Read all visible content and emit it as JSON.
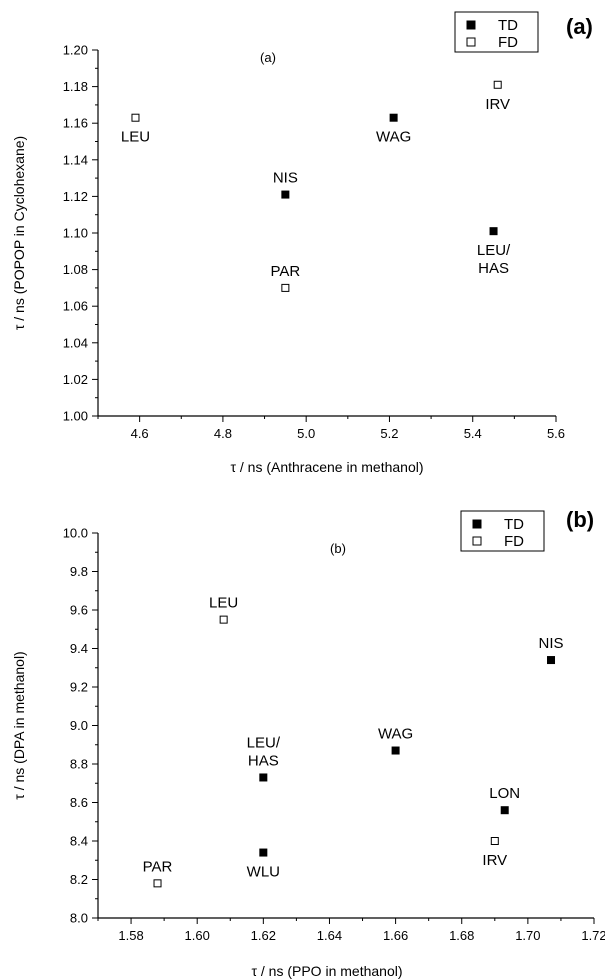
{
  "chart_data": [
    {
      "type": "scatter",
      "panel_letter": "(a)",
      "panel_tag": "(a)",
      "xlabel": "τ / ns (Anthracene in methanol)",
      "ylabel": "τ / ns (POPOP in Cyclohexane)",
      "xlim": [
        4.5,
        5.6
      ],
      "ylim": [
        1.0,
        1.2
      ],
      "xticks": [
        4.6,
        4.8,
        5.0,
        5.2,
        5.4,
        5.6
      ],
      "xtick_labels": [
        "4.6",
        "4.8",
        "5.0",
        "5.2",
        "5.4",
        "5.6"
      ],
      "yticks": [
        1.0,
        1.02,
        1.04,
        1.06,
        1.08,
        1.1,
        1.12,
        1.14,
        1.16,
        1.18,
        1.2
      ],
      "ytick_labels": [
        "1.00",
        "1.02",
        "1.04",
        "1.06",
        "1.08",
        "1.10",
        "1.12",
        "1.14",
        "1.16",
        "1.18",
        "1.20"
      ],
      "legend": {
        "position": "top-right",
        "entries": [
          "TD",
          "FD"
        ]
      },
      "series": [
        {
          "name": "TD",
          "marker": "filled-square",
          "points": [
            {
              "x": 4.95,
              "y": 1.121,
              "label": "NIS",
              "label_pos": "above"
            },
            {
              "x": 5.21,
              "y": 1.163,
              "label": "WAG",
              "label_pos": "below"
            },
            {
              "x": 5.45,
              "y": 1.101,
              "label": "LEU/\nHAS",
              "label_pos": "below"
            }
          ]
        },
        {
          "name": "FD",
          "marker": "open-square",
          "points": [
            {
              "x": 4.59,
              "y": 1.163,
              "label": "LEU",
              "label_pos": "below"
            },
            {
              "x": 4.95,
              "y": 1.07,
              "label": "PAR",
              "label_pos": "above"
            },
            {
              "x": 5.46,
              "y": 1.181,
              "label": "IRV",
              "label_pos": "below"
            }
          ]
        }
      ]
    },
    {
      "type": "scatter",
      "panel_letter": "(b)",
      "panel_tag": "(b)",
      "xlabel": "τ / ns (PPO in methanol)",
      "ylabel": "τ / ns (DPA in methanol)",
      "xlim": [
        1.57,
        1.72
      ],
      "ylim": [
        8.0,
        10.0
      ],
      "xticks": [
        1.58,
        1.6,
        1.62,
        1.64,
        1.66,
        1.68,
        1.7,
        1.72
      ],
      "xtick_labels": [
        "1.58",
        "1.60",
        "1.62",
        "1.64",
        "1.66",
        "1.68",
        "1.70",
        "1.72"
      ],
      "yticks": [
        8.0,
        8.2,
        8.4,
        8.6,
        8.8,
        9.0,
        9.2,
        9.4,
        9.6,
        9.8,
        10.0
      ],
      "ytick_labels": [
        "8.0",
        "8.2",
        "8.4",
        "8.6",
        "8.8",
        "9.0",
        "9.2",
        "9.4",
        "9.6",
        "9.8",
        "10.0"
      ],
      "legend": {
        "position": "top-right",
        "entries": [
          "TD",
          "FD"
        ]
      },
      "series": [
        {
          "name": "TD",
          "marker": "filled-square",
          "points": [
            {
              "x": 1.62,
              "y": 8.73,
              "label": "LEU/\nHAS",
              "label_pos": "above"
            },
            {
              "x": 1.62,
              "y": 8.34,
              "label": "WLU",
              "label_pos": "below"
            },
            {
              "x": 1.66,
              "y": 8.87,
              "label": "WAG",
              "label_pos": "above"
            },
            {
              "x": 1.693,
              "y": 8.56,
              "label": "LON",
              "label_pos": "above"
            },
            {
              "x": 1.707,
              "y": 9.34,
              "label": "NIS",
              "label_pos": "above"
            }
          ]
        },
        {
          "name": "FD",
          "marker": "open-square",
          "points": [
            {
              "x": 1.588,
              "y": 8.18,
              "label": "PAR",
              "label_pos": "above"
            },
            {
              "x": 1.608,
              "y": 9.55,
              "label": "LEU",
              "label_pos": "above"
            },
            {
              "x": 1.69,
              "y": 8.4,
              "label": "IRV",
              "label_pos": "below"
            }
          ]
        }
      ]
    }
  ]
}
